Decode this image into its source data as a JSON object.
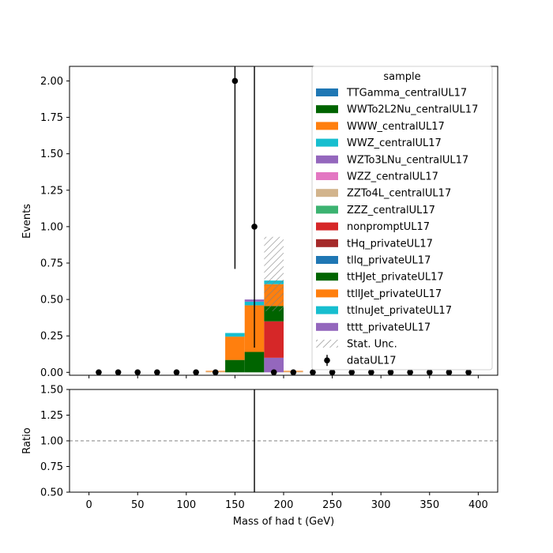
{
  "chart_data": [
    {
      "type": "bar",
      "stacked": true,
      "ylabel": "Events",
      "xlim": [
        -20,
        420
      ],
      "ylim": [
        -0.02,
        2.1
      ],
      "yticks": [
        "0.00",
        "0.25",
        "0.50",
        "0.75",
        "1.00",
        "1.25",
        "1.50",
        "1.75",
        "2.00"
      ],
      "ytick_values": [
        0,
        0.25,
        0.5,
        0.75,
        1.0,
        1.25,
        1.5,
        1.75,
        2.0
      ],
      "bin_edges": [
        0,
        20,
        40,
        60,
        80,
        100,
        120,
        140,
        160,
        180,
        200,
        220,
        240,
        260,
        280,
        300,
        320,
        340,
        360,
        380,
        400
      ],
      "stack_bins": [
        {
          "lo": 120,
          "hi": 140,
          "layers": [
            {
              "series": "ZZTo4L_centralUL17",
              "value": 0.005
            },
            {
              "series": "ttllJet_privateUL17",
              "value": 0.005
            }
          ]
        },
        {
          "lo": 140,
          "hi": 160,
          "layers": [
            {
              "series": "ttHJet_privateUL17",
              "value": 0.085
            },
            {
              "series": "ttllJet_privateUL17",
              "value": 0.16
            },
            {
              "series": "ttlnuJet_privateUL17",
              "value": 0.025
            }
          ]
        },
        {
          "lo": 160,
          "hi": 180,
          "layers": [
            {
              "series": "ttHJet_privateUL17",
              "value": 0.14
            },
            {
              "series": "ttllJet_privateUL17",
              "value": 0.32
            },
            {
              "series": "ttlnuJet_privateUL17",
              "value": 0.025
            },
            {
              "series": "tttt_privateUL17",
              "value": 0.015
            }
          ]
        },
        {
          "lo": 180,
          "hi": 200,
          "layers": [
            {
              "series": "tttt_privateUL17",
              "value": 0.1
            },
            {
              "series": "nonpromptUL17",
              "value": 0.25
            },
            {
              "series": "ttHJet_privateUL17",
              "value": 0.105
            },
            {
              "series": "ttllJet_privateUL17",
              "value": 0.15
            },
            {
              "series": "ttlnuJet_privateUL17",
              "value": 0.025
            }
          ]
        },
        {
          "lo": 200,
          "hi": 220,
          "layers": [
            {
              "series": "ZZTo4L_centralUL17",
              "value": 0.005
            },
            {
              "series": "ttllJet_privateUL17",
              "value": 0.005
            }
          ]
        }
      ],
      "stat_unc": [
        {
          "lo": 180,
          "hi": 200,
          "low": 0.42,
          "high": 0.93
        }
      ],
      "data_points": {
        "name": "dataUL17",
        "x": [
          10,
          30,
          50,
          70,
          90,
          110,
          130,
          150,
          170,
          190,
          210,
          230,
          250,
          270,
          290,
          310,
          330,
          350,
          370,
          390
        ],
        "y": [
          0,
          0,
          0,
          0,
          0,
          0,
          0,
          2.0,
          1.0,
          0,
          0,
          0,
          0,
          0,
          0,
          0,
          0,
          0,
          0,
          0
        ],
        "err_low": [
          0,
          0,
          0,
          0,
          0,
          0,
          0,
          1.29,
          0.83,
          0,
          0,
          0,
          0,
          0,
          0,
          0,
          0,
          0,
          0,
          0
        ],
        "err_high": [
          0,
          0,
          0,
          0,
          0,
          0,
          0,
          2.1,
          2.1,
          0,
          0,
          0,
          0,
          0,
          0,
          0,
          0,
          0,
          0,
          0
        ]
      },
      "legend": {
        "title": "sample",
        "placement": "top-right",
        "entries": [
          {
            "label": "TTGamma_centralUL17",
            "color": "#1f77b4",
            "kind": "patch"
          },
          {
            "label": "WWTo2L2Nu_centralUL17",
            "color": "#006400",
            "kind": "patch"
          },
          {
            "label": "WWW_centralUL17",
            "color": "#ff7f0e",
            "kind": "patch"
          },
          {
            "label": "WWZ_centralUL17",
            "color": "#17becf",
            "kind": "patch"
          },
          {
            "label": "WZTo3LNu_centralUL17",
            "color": "#9467bd",
            "kind": "patch"
          },
          {
            "label": "WZZ_centralUL17",
            "color": "#e377c2",
            "kind": "patch"
          },
          {
            "label": "ZZTo4L_centralUL17",
            "color": "#d2b48c",
            "kind": "patch"
          },
          {
            "label": "ZZZ_centralUL17",
            "color": "#3cb371",
            "kind": "patch"
          },
          {
            "label": "nonpromptUL17",
            "color": "#d62728",
            "kind": "patch"
          },
          {
            "label": "tHq_privateUL17",
            "color": "#a52a2a",
            "kind": "patch"
          },
          {
            "label": "tllq_privateUL17",
            "color": "#1f77b4",
            "kind": "patch"
          },
          {
            "label": "ttHJet_privateUL17",
            "color": "#006400",
            "kind": "patch"
          },
          {
            "label": "ttllJet_privateUL17",
            "color": "#ff7f0e",
            "kind": "patch"
          },
          {
            "label": "ttlnuJet_privateUL17",
            "color": "#17becf",
            "kind": "patch"
          },
          {
            "label": "tttt_privateUL17",
            "color": "#9467bd",
            "kind": "patch"
          },
          {
            "label": "Stat. Unc.",
            "color": "#808080",
            "kind": "hatch"
          },
          {
            "label": "dataUL17",
            "color": "#000000",
            "kind": "marker"
          }
        ]
      }
    },
    {
      "type": "line",
      "ylabel": "Ratio",
      "xlabel": "Mass of had t (GeV)",
      "xlim": [
        -20,
        420
      ],
      "ylim": [
        0.5,
        1.5
      ],
      "xticks": [
        "0",
        "50",
        "100",
        "150",
        "200",
        "250",
        "300",
        "350",
        "400"
      ],
      "xtick_values": [
        0,
        50,
        100,
        150,
        200,
        250,
        300,
        350,
        400
      ],
      "yticks": [
        "0.50",
        "0.75",
        "1.00",
        "1.25",
        "1.50"
      ],
      "ytick_values": [
        0.5,
        0.75,
        1.0,
        1.25,
        1.5
      ],
      "reference_line": 1.0,
      "ratio_errorbars": [
        {
          "x": 170,
          "low": 0.5,
          "high": 1.5
        }
      ]
    }
  ]
}
